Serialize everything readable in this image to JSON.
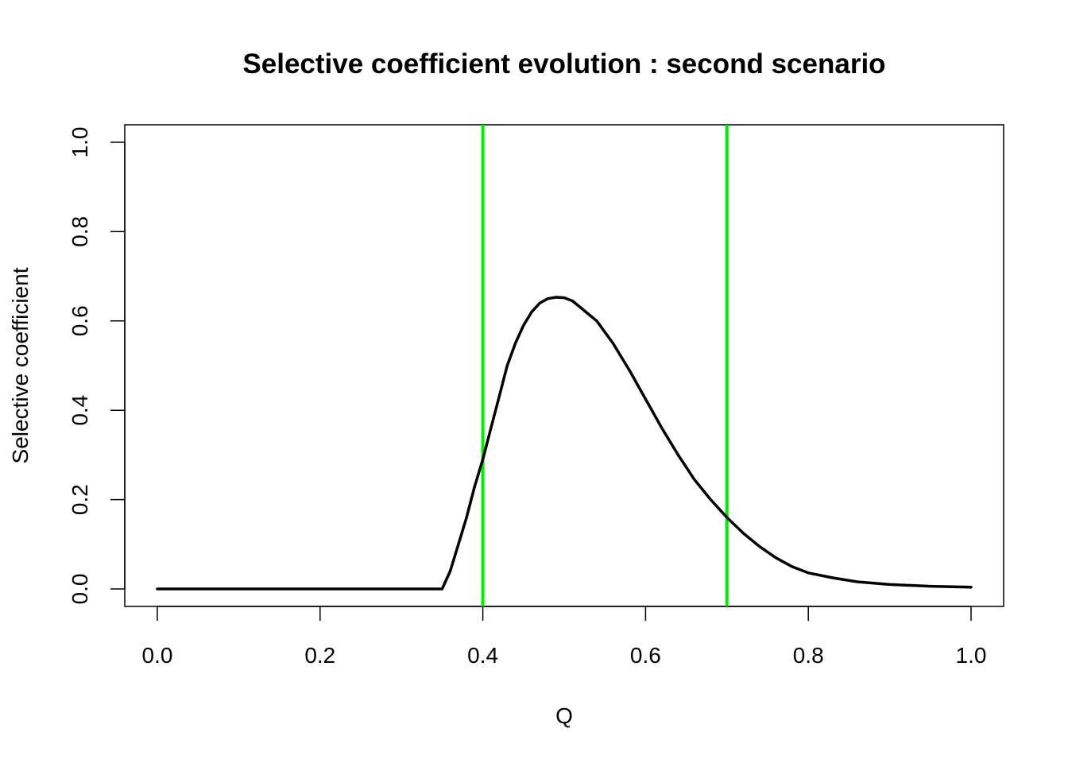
{
  "chart_data": {
    "type": "line",
    "title": "Selective coefficient evolution : second scenario",
    "xlabel": "Q",
    "ylabel": "Selective coefficient",
    "xlim": [
      0.0,
      1.0
    ],
    "ylim": [
      0.0,
      1.0
    ],
    "x_ticks": [
      0.0,
      0.2,
      0.4,
      0.6,
      0.8,
      1.0
    ],
    "x_tick_labels": [
      "0.0",
      "0.2",
      "0.4",
      "0.6",
      "0.8",
      "1.0"
    ],
    "y_ticks": [
      0.0,
      0.2,
      0.4,
      0.6,
      0.8,
      1.0
    ],
    "y_tick_labels": [
      "0.0",
      "0.2",
      "0.4",
      "0.6",
      "0.8",
      "1.0"
    ],
    "grid": false,
    "series": [
      {
        "color": "#000000",
        "x": [
          0.0,
          0.35,
          0.36,
          0.37,
          0.38,
          0.39,
          0.4,
          0.41,
          0.42,
          0.43,
          0.44,
          0.45,
          0.46,
          0.47,
          0.48,
          0.49,
          0.5,
          0.51,
          0.52,
          0.53,
          0.54,
          0.55,
          0.56,
          0.58,
          0.6,
          0.62,
          0.64,
          0.66,
          0.68,
          0.7,
          0.72,
          0.74,
          0.76,
          0.78,
          0.8,
          0.83,
          0.86,
          0.9,
          0.95,
          1.0
        ],
        "y": [
          0.0,
          0.0,
          0.04,
          0.1,
          0.16,
          0.23,
          0.29,
          0.36,
          0.43,
          0.5,
          0.55,
          0.59,
          0.62,
          0.64,
          0.65,
          0.653,
          0.652,
          0.645,
          0.63,
          0.615,
          0.6,
          0.575,
          0.55,
          0.49,
          0.425,
          0.36,
          0.3,
          0.245,
          0.2,
          0.16,
          0.125,
          0.095,
          0.07,
          0.05,
          0.036,
          0.025,
          0.016,
          0.01,
          0.006,
          0.004
        ]
      }
    ],
    "vlines": [
      {
        "x": 0.4,
        "color": "#00ee00"
      },
      {
        "x": 0.7,
        "color": "#00ee00"
      }
    ]
  }
}
